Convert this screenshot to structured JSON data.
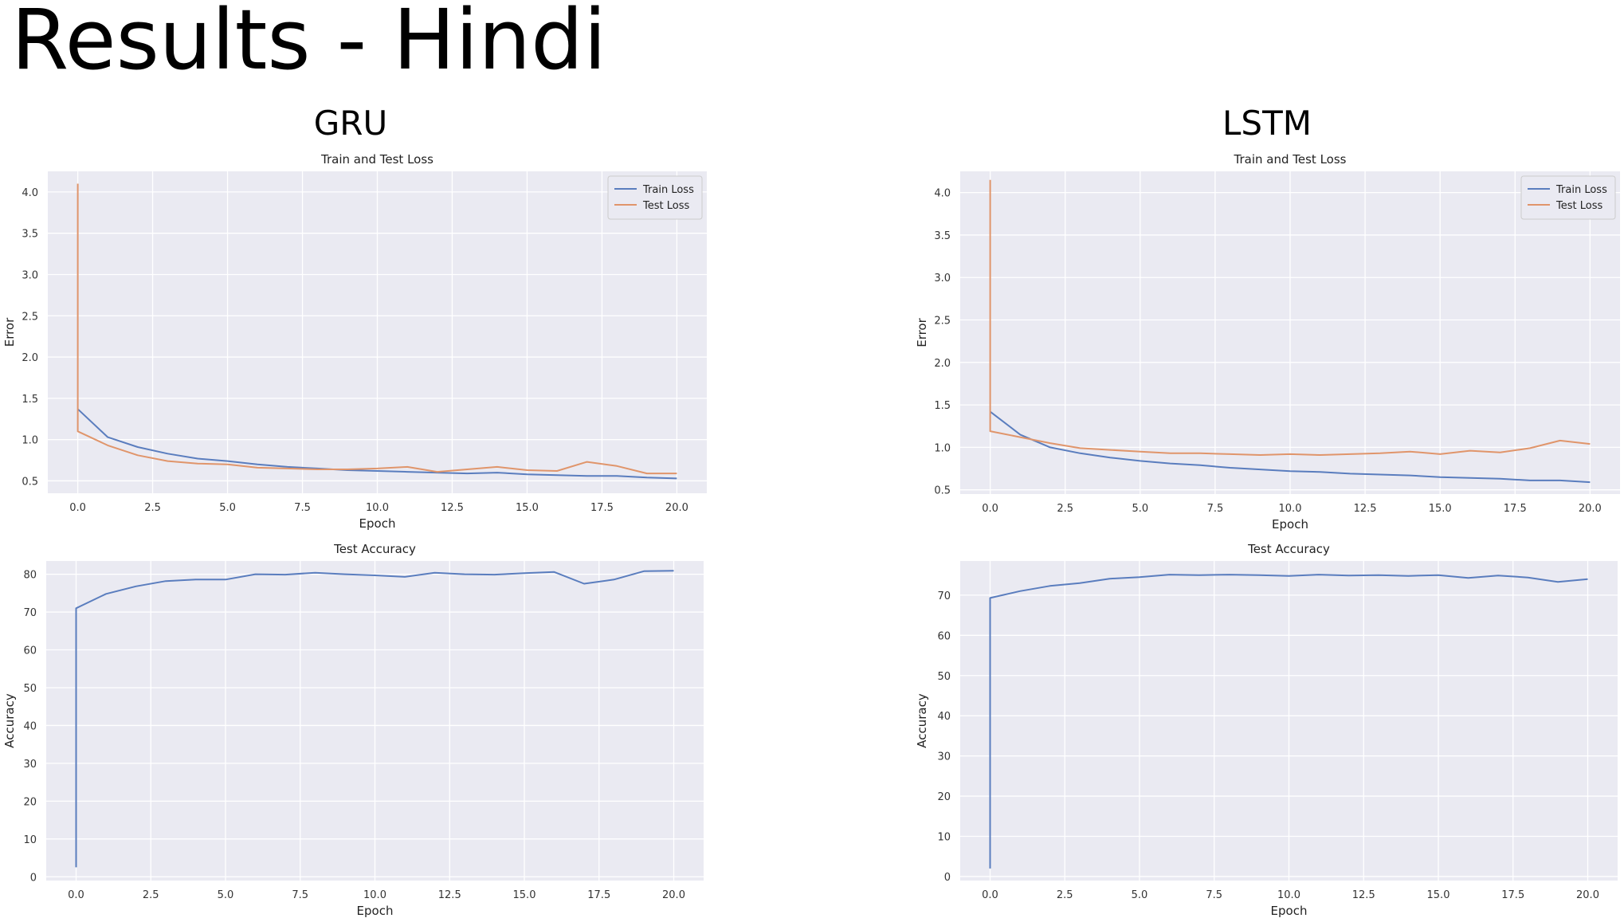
{
  "page": {
    "title": "Results - Hindi",
    "sections": [
      "GRU",
      "LSTM"
    ]
  },
  "colors": {
    "train": "#5a7dbe",
    "test": "#e0956b",
    "plot_bg": "#eaeaf2",
    "grid": "#ffffff"
  },
  "chart_data": [
    {
      "id": "gru-loss",
      "type": "line",
      "title": "Train and Test Loss",
      "xlabel": "Epoch",
      "ylabel": "Error",
      "xlim": [
        -1,
        21
      ],
      "ylim": [
        0.35,
        4.25
      ],
      "xticks": [
        0.0,
        2.5,
        5.0,
        7.5,
        10.0,
        12.5,
        15.0,
        17.5,
        20.0
      ],
      "yticks": [
        0.5,
        1.0,
        1.5,
        2.0,
        2.5,
        3.0,
        3.5,
        4.0
      ],
      "ytick_format": 1,
      "legend": "top-right",
      "grid": true,
      "series": [
        {
          "name": "Train Loss",
          "color": "#5a7dbe",
          "x": [
            0,
            1,
            2,
            3,
            4,
            5,
            6,
            7,
            8,
            9,
            10,
            11,
            12,
            13,
            14,
            15,
            16,
            17,
            18,
            19,
            20
          ],
          "y": [
            1.37,
            1.03,
            0.91,
            0.83,
            0.77,
            0.74,
            0.7,
            0.67,
            0.65,
            0.63,
            0.62,
            0.61,
            0.6,
            0.59,
            0.6,
            0.58,
            0.57,
            0.56,
            0.56,
            0.54,
            0.53
          ]
        },
        {
          "name": "Test Loss",
          "color": "#e0956b",
          "x": [
            0,
            0,
            1,
            2,
            3,
            4,
            5,
            6,
            7,
            8,
            9,
            10,
            11,
            12,
            13,
            14,
            15,
            16,
            17,
            18,
            19,
            20
          ],
          "y": [
            4.1,
            1.1,
            0.93,
            0.81,
            0.74,
            0.71,
            0.7,
            0.66,
            0.65,
            0.64,
            0.64,
            0.65,
            0.67,
            0.61,
            0.64,
            0.67,
            0.63,
            0.62,
            0.73,
            0.68,
            0.59,
            0.59
          ]
        }
      ]
    },
    {
      "id": "gru-acc",
      "type": "line",
      "title": "Test Accuracy",
      "xlabel": "Epoch",
      "ylabel": "Accuracy",
      "xlim": [
        -1,
        21
      ],
      "ylim": [
        -1,
        83.5
      ],
      "xticks": [
        0.0,
        2.5,
        5.0,
        7.5,
        10.0,
        12.5,
        15.0,
        17.5,
        20.0
      ],
      "yticks": [
        0,
        10,
        20,
        30,
        40,
        50,
        60,
        70,
        80
      ],
      "ytick_format": 0,
      "grid": true,
      "series": [
        {
          "color": "#5a7dbe",
          "x": [
            0,
            0,
            1,
            2,
            3,
            4,
            5,
            6,
            7,
            8,
            9,
            10,
            11,
            12,
            13,
            14,
            15,
            16,
            17,
            18,
            19,
            20
          ],
          "y": [
            2.5,
            71,
            74.8,
            76.8,
            78.2,
            78.6,
            78.6,
            80.0,
            79.9,
            80.4,
            80.0,
            79.7,
            79.3,
            80.4,
            80.0,
            79.9,
            80.3,
            80.6,
            77.5,
            78.6,
            80.8,
            80.9
          ]
        }
      ]
    },
    {
      "id": "lstm-loss",
      "type": "line",
      "title": "Train and Test Loss",
      "xlabel": "Epoch",
      "ylabel": "Error",
      "xlim": [
        -1,
        21
      ],
      "ylim": [
        0.45,
        4.25
      ],
      "xticks": [
        0.0,
        2.5,
        5.0,
        7.5,
        10.0,
        12.5,
        15.0,
        17.5,
        20.0
      ],
      "yticks": [
        0.5,
        1.0,
        1.5,
        2.0,
        2.5,
        3.0,
        3.5,
        4.0
      ],
      "ytick_format": 1,
      "legend": "top-right",
      "grid": true,
      "series": [
        {
          "name": "Train Loss",
          "color": "#5a7dbe",
          "x": [
            0,
            1,
            2,
            3,
            4,
            5,
            6,
            7,
            8,
            9,
            10,
            11,
            12,
            13,
            14,
            15,
            16,
            17,
            18,
            19,
            20
          ],
          "y": [
            1.42,
            1.15,
            1.0,
            0.93,
            0.88,
            0.84,
            0.81,
            0.79,
            0.76,
            0.74,
            0.72,
            0.71,
            0.69,
            0.68,
            0.67,
            0.65,
            0.64,
            0.63,
            0.61,
            0.61,
            0.59
          ]
        },
        {
          "name": "Test Loss",
          "color": "#e0956b",
          "x": [
            0,
            0,
            1,
            2,
            3,
            4,
            5,
            6,
            7,
            8,
            9,
            10,
            11,
            12,
            13,
            14,
            15,
            16,
            17,
            18,
            19,
            20
          ],
          "y": [
            4.15,
            1.19,
            1.12,
            1.05,
            0.99,
            0.97,
            0.95,
            0.93,
            0.93,
            0.92,
            0.91,
            0.92,
            0.91,
            0.92,
            0.93,
            0.95,
            0.92,
            0.96,
            0.94,
            0.99,
            1.08,
            1.04
          ]
        }
      ]
    },
    {
      "id": "lstm-acc",
      "type": "line",
      "title": "Test Accuracy",
      "xlabel": "Epoch",
      "ylabel": "Accuracy",
      "xlim": [
        -1,
        21
      ],
      "ylim": [
        -1,
        78.5
      ],
      "xticks": [
        0.0,
        2.5,
        5.0,
        7.5,
        10.0,
        12.5,
        15.0,
        17.5,
        20.0
      ],
      "yticks": [
        0,
        10,
        20,
        30,
        40,
        50,
        60,
        70
      ],
      "ytick_format": 0,
      "grid": true,
      "series": [
        {
          "color": "#5a7dbe",
          "x": [
            0,
            0,
            1,
            2,
            3,
            4,
            5,
            6,
            7,
            8,
            9,
            10,
            11,
            12,
            13,
            14,
            15,
            16,
            17,
            18,
            19,
            20
          ],
          "y": [
            2,
            69.3,
            71.0,
            72.3,
            73.0,
            74.1,
            74.5,
            75.1,
            75.0,
            75.1,
            75.0,
            74.8,
            75.1,
            74.9,
            75.0,
            74.8,
            75.0,
            74.3,
            74.9,
            74.4,
            73.3,
            74.0
          ]
        }
      ]
    }
  ]
}
